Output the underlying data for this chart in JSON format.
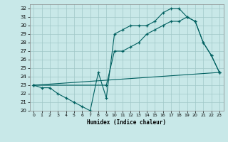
{
  "xlabel": "Humidex (Indice chaleur)",
  "xlim": [
    -0.5,
    23.5
  ],
  "ylim": [
    20,
    32.5
  ],
  "xticks": [
    0,
    1,
    2,
    3,
    4,
    5,
    6,
    7,
    8,
    9,
    10,
    11,
    12,
    13,
    14,
    15,
    16,
    17,
    18,
    19,
    20,
    21,
    22,
    23
  ],
  "yticks": [
    20,
    21,
    22,
    23,
    24,
    25,
    26,
    27,
    28,
    29,
    30,
    31,
    32
  ],
  "bg_color": "#c8e8e8",
  "grid_color": "#a0c8c8",
  "line_color": "#006060",
  "line1_x": [
    0,
    1,
    2,
    3,
    4,
    5,
    6,
    7,
    8,
    9,
    10,
    11,
    12,
    13,
    14,
    15,
    16,
    17,
    18,
    19,
    20,
    21,
    22,
    23
  ],
  "line1_y": [
    23.0,
    22.7,
    22.7,
    22.0,
    21.5,
    21.0,
    20.5,
    20.0,
    24.5,
    21.5,
    29.0,
    29.5,
    30.0,
    30.0,
    30.0,
    30.5,
    31.5,
    32.0,
    32.0,
    31.0,
    30.5,
    28.0,
    26.5,
    24.5
  ],
  "line2_x": [
    0,
    9,
    10,
    11,
    12,
    13,
    14,
    15,
    16,
    17,
    18,
    19,
    20,
    21,
    22,
    23
  ],
  "line2_y": [
    23.0,
    23.0,
    27.0,
    27.0,
    27.5,
    28.0,
    29.0,
    29.5,
    30.0,
    30.5,
    30.5,
    31.0,
    30.5,
    28.0,
    26.5,
    24.5
  ],
  "line3_x": [
    0,
    23
  ],
  "line3_y": [
    23.0,
    24.5
  ]
}
